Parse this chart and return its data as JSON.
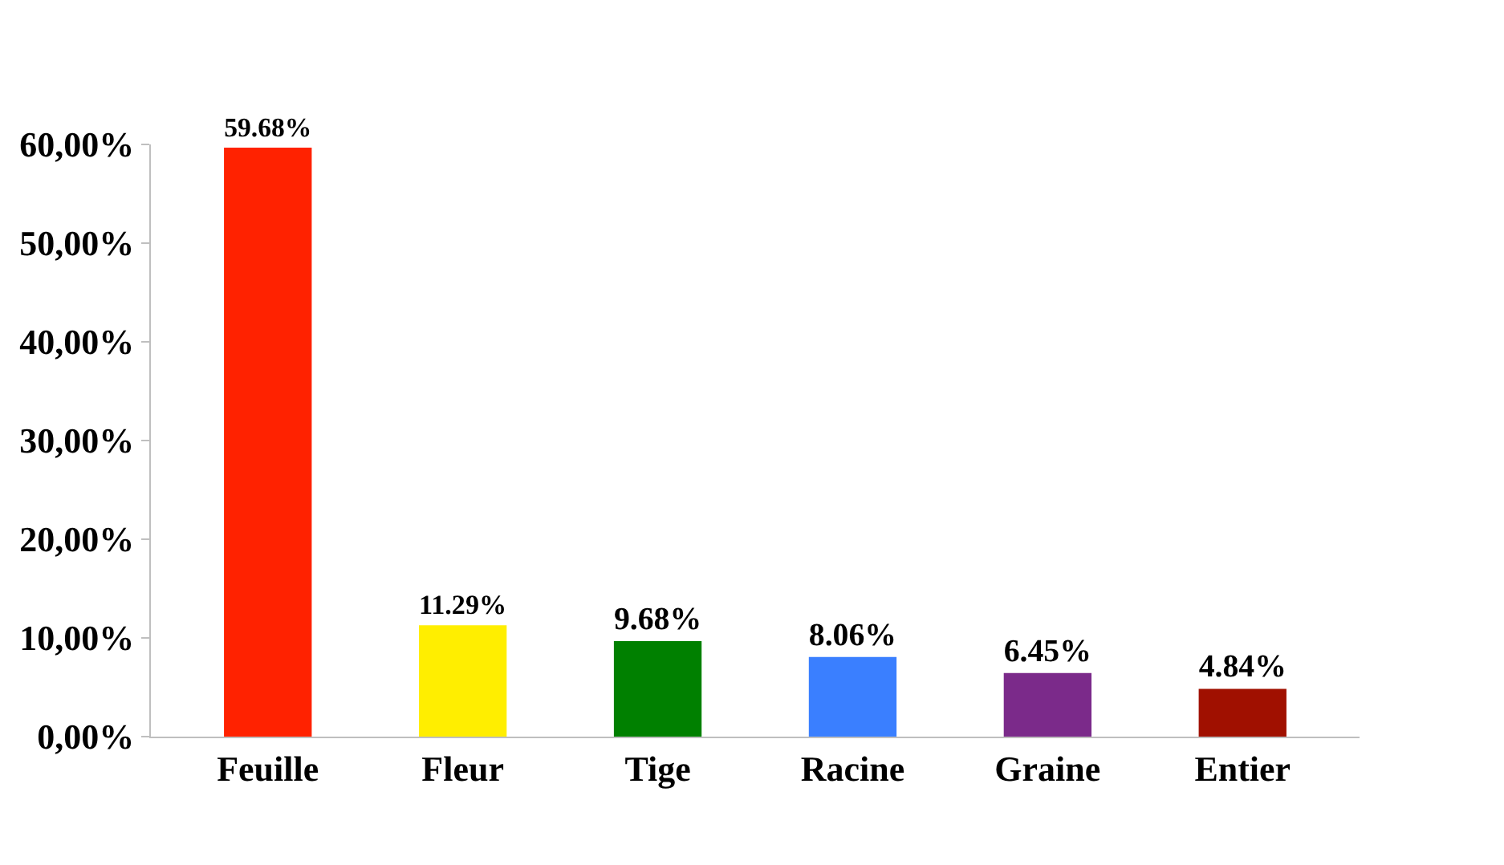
{
  "chart_data": {
    "type": "bar",
    "categories": [
      "Feuille",
      "Fleur",
      "Tige",
      "Racine",
      "Graine",
      "Entier"
    ],
    "values": [
      59.68,
      11.29,
      9.68,
      8.06,
      6.45,
      4.84
    ],
    "colors": [
      "#ff2200",
      "#ffee00",
      "#008000",
      "#3a7fff",
      "#7b2a8a",
      "#a01000"
    ],
    "value_labels": [
      "59.68%",
      "11.29%",
      "9.68%",
      "8.06%",
      "6.45%",
      "4.84%"
    ],
    "ylim": [
      0,
      60
    ],
    "yticks": [
      {
        "value": 0,
        "label": "0,00%"
      },
      {
        "value": 10,
        "label": "10,00%"
      },
      {
        "value": 20,
        "label": "20,00%"
      },
      {
        "value": 30,
        "label": "30,00%"
      },
      {
        "value": 40,
        "label": "40,00%"
      },
      {
        "value": 50,
        "label": "50,00%"
      },
      {
        "value": 60,
        "label": "60,00%"
      }
    ]
  }
}
